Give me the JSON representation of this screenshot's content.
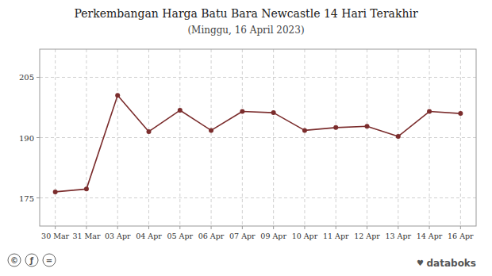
{
  "chart_data": {
    "type": "line",
    "title": "Perkembangan Harga Batu Bara Newcastle 14 Hari Terakhir",
    "subtitle": "(Minggu, 16 April 2023)",
    "categories": [
      "30 Mar",
      "31 Mar",
      "03 Apr",
      "04 Apr",
      "05 Apr",
      "06 Apr",
      "07 Apr",
      "09 Apr",
      "10 Apr",
      "11 Apr",
      "12 Apr",
      "13 Apr",
      "14 Apr",
      "16 Apr"
    ],
    "values": [
      176.5,
      177.2,
      200.5,
      191.5,
      196.8,
      191.8,
      196.5,
      196.2,
      191.8,
      192.5,
      192.8,
      190.3,
      196.5,
      196.0
    ],
    "color": "#7B2D2D",
    "marker": "circle",
    "ylim": [
      168,
      212
    ],
    "yticks": [
      175,
      190,
      205
    ],
    "grid": true,
    "annotations": [
      "databoks",
      "♥",
      "©",
      "ƒ",
      "="
    ]
  }
}
